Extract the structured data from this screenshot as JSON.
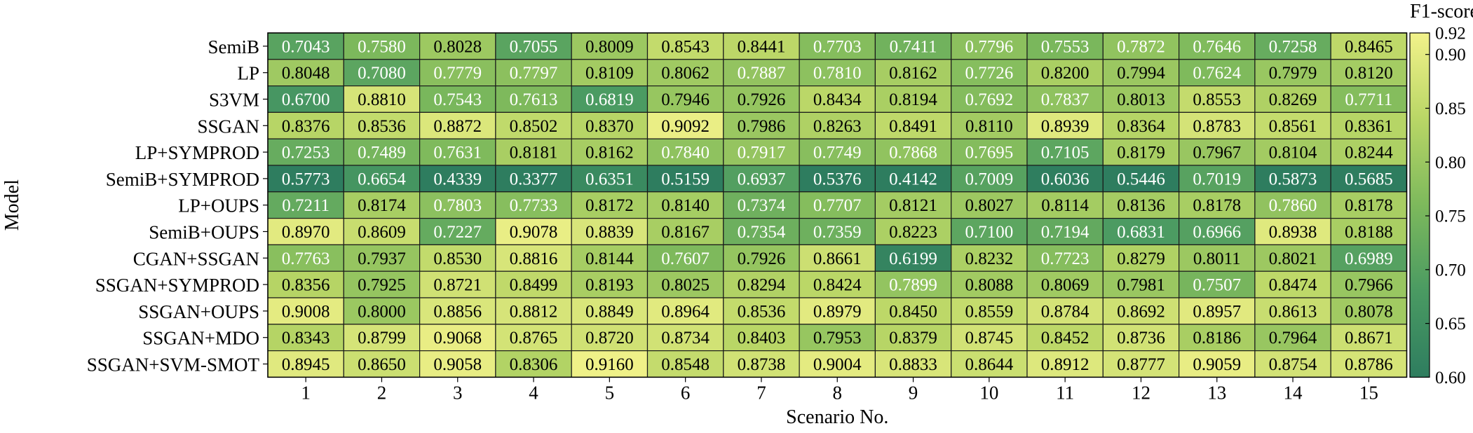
{
  "chart_data": {
    "type": "heatmap",
    "xlabel": "Scenario No.",
    "ylabel": "Model",
    "colorbar_label": "F1-score",
    "colorbar_range": [
      0.6,
      0.92
    ],
    "colorbar_ticks": [
      "0.60",
      "0.65",
      "0.70",
      "0.75",
      "0.80",
      "0.85",
      "0.90",
      "0.92"
    ],
    "colormap": [
      "#2e7d5f",
      "#4a9a62",
      "#7db95c",
      "#b9d666",
      "#f2f28a"
    ],
    "columns": [
      "1",
      "2",
      "3",
      "4",
      "5",
      "6",
      "7",
      "8",
      "9",
      "10",
      "11",
      "12",
      "13",
      "14",
      "15"
    ],
    "rows": [
      "SemiB",
      "LP",
      "S3VM",
      "SSGAN",
      "LP+SYMPROD",
      "SemiB+SYMPROD",
      "LP+OUPS",
      "SemiB+OUPS",
      "CGAN+SSGAN",
      "SSGAN+SYMPROD",
      "SSGAN+OUPS",
      "SSGAN+MDO",
      "SSGAN+SVM-SMOT"
    ],
    "values": [
      [
        "0.7043",
        "0.7580",
        "0.8028",
        "0.7055",
        "0.8009",
        "0.8543",
        "0.8441",
        "0.7703",
        "0.7411",
        "0.7796",
        "0.7553",
        "0.7872",
        "0.7646",
        "0.7258",
        "0.8465"
      ],
      [
        "0.8048",
        "0.7080",
        "0.7779",
        "0.7797",
        "0.8109",
        "0.8062",
        "0.7887",
        "0.7810",
        "0.8162",
        "0.7726",
        "0.8200",
        "0.7994",
        "0.7624",
        "0.7979",
        "0.8120"
      ],
      [
        "0.6700",
        "0.8810",
        "0.7543",
        "0.7613",
        "0.6819",
        "0.7946",
        "0.7926",
        "0.8434",
        "0.8194",
        "0.7692",
        "0.7837",
        "0.8013",
        "0.8553",
        "0.8269",
        "0.7711"
      ],
      [
        "0.8376",
        "0.8536",
        "0.8872",
        "0.8502",
        "0.8370",
        "0.9092",
        "0.7986",
        "0.8263",
        "0.8491",
        "0.8110",
        "0.8939",
        "0.8364",
        "0.8783",
        "0.8561",
        "0.8361"
      ],
      [
        "0.7253",
        "0.7489",
        "0.7631",
        "0.8181",
        "0.8162",
        "0.7840",
        "0.7917",
        "0.7749",
        "0.7868",
        "0.7695",
        "0.7105",
        "0.8179",
        "0.7967",
        "0.8104",
        "0.8244"
      ],
      [
        "0.5773",
        "0.6654",
        "0.4339",
        "0.3377",
        "0.6351",
        "0.5159",
        "0.6937",
        "0.5376",
        "0.4142",
        "0.7009",
        "0.6036",
        "0.5446",
        "0.7019",
        "0.5873",
        "0.5685"
      ],
      [
        "0.7211",
        "0.8174",
        "0.7803",
        "0.7733",
        "0.8172",
        "0.8140",
        "0.7374",
        "0.7707",
        "0.8121",
        "0.8027",
        "0.8114",
        "0.8136",
        "0.8178",
        "0.7860",
        "0.8178"
      ],
      [
        "0.8970",
        "0.8609",
        "0.7227",
        "0.9078",
        "0.8839",
        "0.8167",
        "0.7354",
        "0.7359",
        "0.8223",
        "0.7100",
        "0.7194",
        "0.6831",
        "0.6966",
        "0.8938",
        "0.8188"
      ],
      [
        "0.7763",
        "0.7937",
        "0.8530",
        "0.8816",
        "0.8144",
        "0.7607",
        "0.7926",
        "0.8661",
        "0.6199",
        "0.8232",
        "0.7723",
        "0.8279",
        "0.8011",
        "0.8021",
        "0.6989"
      ],
      [
        "0.8356",
        "0.7925",
        "0.8721",
        "0.8499",
        "0.8193",
        "0.8025",
        "0.8294",
        "0.8424",
        "0.7899",
        "0.8088",
        "0.8069",
        "0.7981",
        "0.7507",
        "0.8474",
        "0.7966"
      ],
      [
        "0.9008",
        "0.8000",
        "0.8856",
        "0.8812",
        "0.8849",
        "0.8964",
        "0.8536",
        "0.8979",
        "0.8450",
        "0.8559",
        "0.8784",
        "0.8692",
        "0.8957",
        "0.8613",
        "0.8078"
      ],
      [
        "0.8343",
        "0.8799",
        "0.9068",
        "0.8765",
        "0.8720",
        "0.8734",
        "0.8403",
        "0.7953",
        "0.8379",
        "0.8745",
        "0.8452",
        "0.8736",
        "0.8186",
        "0.7964",
        "0.8671"
      ],
      [
        "0.8945",
        "0.8650",
        "0.9058",
        "0.8306",
        "0.9160",
        "0.8548",
        "0.8738",
        "0.9004",
        "0.8833",
        "0.8644",
        "0.8912",
        "0.8777",
        "0.9059",
        "0.8754",
        "0.8786"
      ]
    ]
  }
}
